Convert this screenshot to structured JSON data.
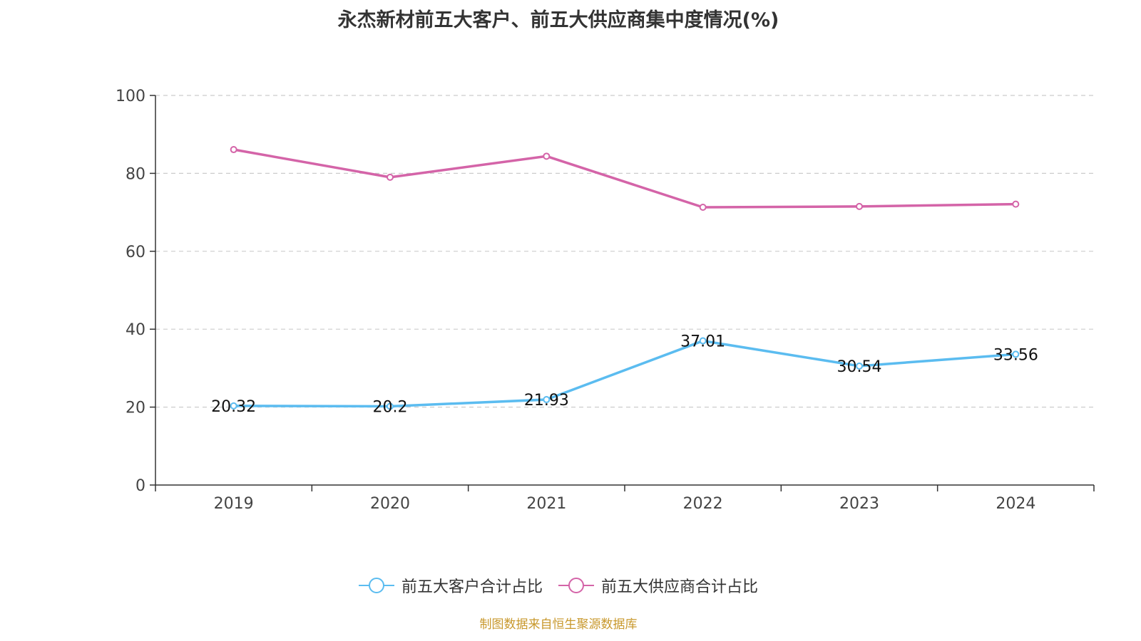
{
  "title": "永杰新材前五大客户、前五大供应商集中度情况(%)",
  "source": "制图数据来自恒生聚源数据库",
  "colors": {
    "customers": "#5bbcf0",
    "suppliers": "#d464a8",
    "axis": "#333333",
    "grid": "#cccccc",
    "source": "#c8982c"
  },
  "chart_data": {
    "type": "line",
    "title": "永杰新材前五大客户、前五大供应商集中度情况(%)",
    "xlabel": "",
    "ylabel": "",
    "ylim": [
      0,
      100
    ],
    "yticks": [
      0,
      20,
      40,
      60,
      80,
      100
    ],
    "grid": true,
    "legend_position": "bottom",
    "categories": [
      "2019",
      "2020",
      "2021",
      "2022",
      "2023",
      "2024"
    ],
    "series": [
      {
        "name": "前五大客户合计占比",
        "values": [
          20.32,
          20.2,
          21.93,
          37.01,
          30.54,
          33.56
        ],
        "labels": [
          "20.32",
          "20.2",
          "21.93",
          "37.01",
          "30.54",
          "33.56"
        ],
        "color": "#5bbcf0",
        "show_labels": true
      },
      {
        "name": "前五大供应商合计占比",
        "values": [
          86.1,
          79.0,
          84.4,
          71.3,
          71.5,
          72.1
        ],
        "color": "#d464a8",
        "show_labels": false
      }
    ]
  }
}
